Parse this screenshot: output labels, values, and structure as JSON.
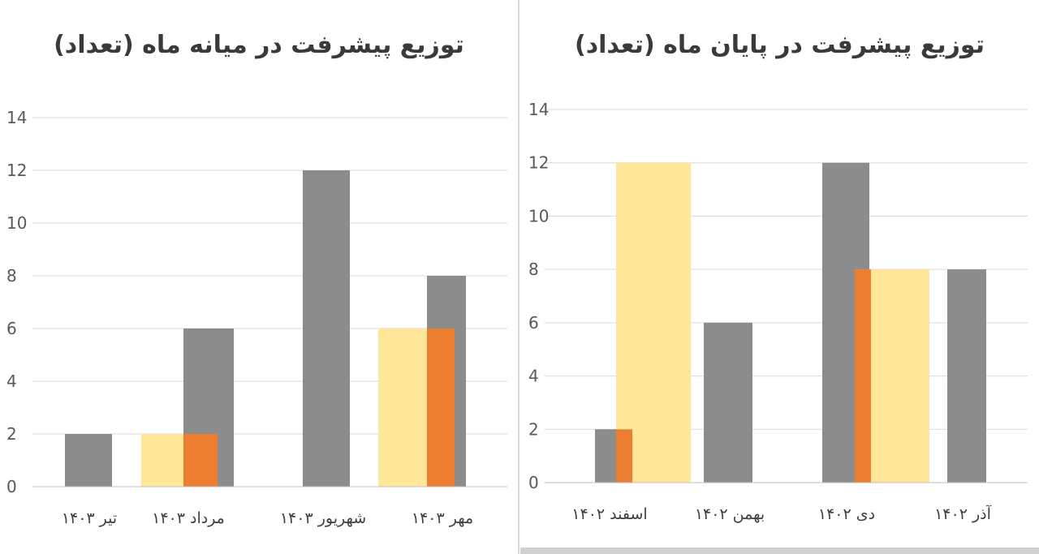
{
  "chart_data": [
    {
      "type": "bar",
      "title": "توزیع پیشرفت در میانه ماه (تعداد)",
      "categories": [
        "تیر ۱۴۰۳",
        "مرداد ۱۴۰۳",
        "شهریور ۱۴۰۳",
        "مهر ۱۴۰۳"
      ],
      "ylim": [
        0,
        14
      ],
      "yticks": [
        "0",
        "2",
        "4",
        "6",
        "8",
        "10",
        "12",
        "14"
      ],
      "series": [
        {
          "values": [
            2,
            6,
            12,
            8
          ],
          "color": "#8c8c8c"
        },
        {
          "values": [
            0,
            2,
            0,
            6
          ],
          "color": "#ed7d31"
        },
        {
          "values": [
            0,
            2,
            0,
            6
          ],
          "color": "#ffe699"
        }
      ],
      "grid": true
    },
    {
      "type": "bar",
      "title": "توزیع پیشرفت در پایان ماه (تعداد)",
      "categories": [
        "اسفند ۱۴۰۲",
        "بهمن ۱۴۰۲",
        "دی ۱۴۰۲",
        "آذر ۱۴۰۲"
      ],
      "ylim": [
        0,
        14
      ],
      "yticks": [
        "0",
        "2",
        "4",
        "6",
        "8",
        "10",
        "12",
        "14"
      ],
      "series": [
        {
          "values": [
            2,
            6,
            12,
            8
          ],
          "color": "#8c8c8c"
        },
        {
          "values": [
            2,
            0,
            8,
            0
          ],
          "color": "#ed7d31"
        },
        {
          "values": [
            12,
            0,
            8,
            0
          ],
          "color": "#ffe699"
        }
      ],
      "grid": true
    }
  ]
}
